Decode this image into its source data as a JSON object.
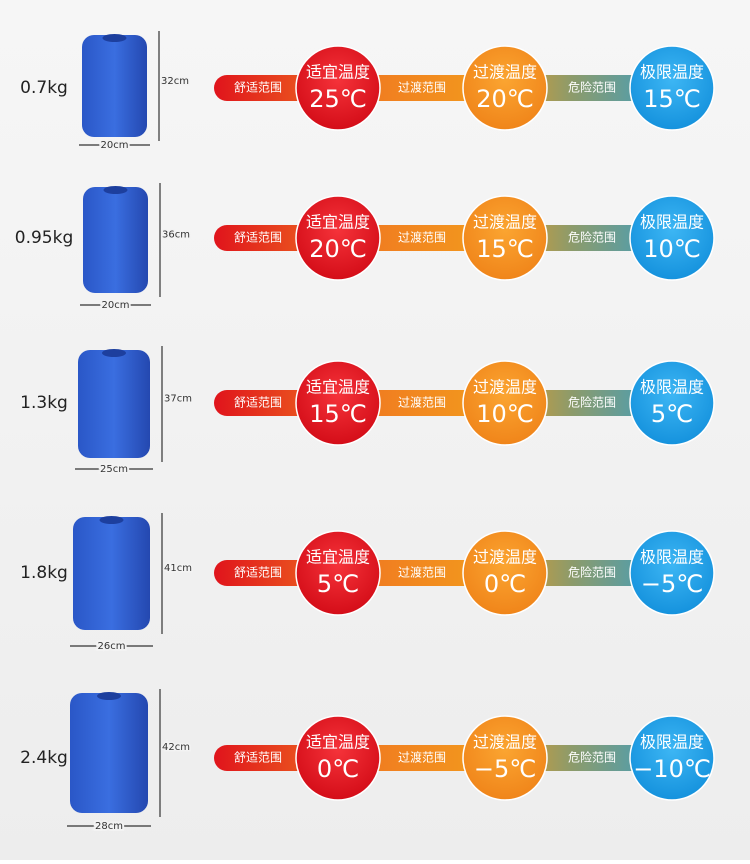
{
  "labels": {
    "comfort_range": "舒适范围",
    "comfort_temp": "适宜温度",
    "transition_range": "过渡范围",
    "transition_temp": "过渡温度",
    "danger_range": "危险范围",
    "limit_temp": "极限温度"
  },
  "rows": [
    {
      "weight": "0.7kg",
      "height": "32cm",
      "width": "20cm",
      "comfort": "25℃",
      "transition": "20℃",
      "limit": "15℃"
    },
    {
      "weight": "0.95kg",
      "height": "36cm",
      "width": "20cm",
      "comfort": "20℃",
      "transition": "15℃",
      "limit": "10℃"
    },
    {
      "weight": "1.3kg",
      "height": "37cm",
      "width": "25cm",
      "comfort": "15℃",
      "transition": "10℃",
      "limit": "5℃"
    },
    {
      "weight": "1.8kg",
      "height": "41cm",
      "width": "26cm",
      "comfort": "5℃",
      "transition": "0℃",
      "limit": "−5℃"
    },
    {
      "weight": "2.4kg",
      "height": "42cm",
      "width": "28cm",
      "comfort": "0℃",
      "transition": "−5℃",
      "limit": "−10℃"
    }
  ]
}
